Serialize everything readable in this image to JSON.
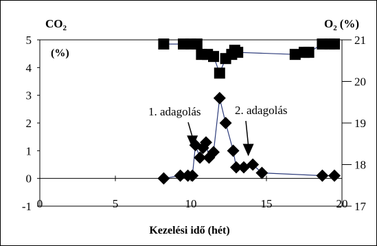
{
  "chart_data": {
    "type": "scatter",
    "title": "",
    "xlabel": "Kezelési idő (hét)",
    "ylabel_left": {
      "main": "CO",
      "sub": "2",
      "unit": "(%)"
    },
    "ylabel_right": {
      "main": "O",
      "sub": "2",
      "unit": "(%)"
    },
    "xlim": [
      0,
      20
    ],
    "ylim_left": [
      -1,
      5
    ],
    "ylim_right": [
      17,
      21
    ],
    "xticks": [
      "0",
      "5",
      "10",
      "15",
      "20"
    ],
    "yticks_left": [
      "-1",
      "0",
      "1",
      "2",
      "3",
      "4",
      "5"
    ],
    "yticks_right": [
      "17",
      "18",
      "19",
      "20",
      "21"
    ],
    "grid": false,
    "legend": "none",
    "series": [
      {
        "marker": "square",
        "axis": "right",
        "color": "#000000",
        "line_color": "#2b3a7a",
        "points": [
          {
            "x": 8.2,
            "y": 20.9
          },
          {
            "x": 9.5,
            "y": 20.9
          },
          {
            "x": 10.0,
            "y": 20.9
          },
          {
            "x": 10.4,
            "y": 20.9
          },
          {
            "x": 10.7,
            "y": 20.65
          },
          {
            "x": 11.1,
            "y": 20.65
          },
          {
            "x": 11.5,
            "y": 20.6
          },
          {
            "x": 11.9,
            "y": 20.2
          },
          {
            "x": 12.3,
            "y": 20.55
          },
          {
            "x": 12.7,
            "y": 20.65
          },
          {
            "x": 12.9,
            "y": 20.75
          },
          {
            "x": 13.1,
            "y": 20.7
          },
          {
            "x": 16.9,
            "y": 20.65
          },
          {
            "x": 17.5,
            "y": 20.7
          },
          {
            "x": 17.8,
            "y": 20.7
          },
          {
            "x": 18.7,
            "y": 20.9
          },
          {
            "x": 19.2,
            "y": 20.9
          },
          {
            "x": 19.5,
            "y": 20.9
          }
        ]
      },
      {
        "marker": "diamond",
        "axis": "left",
        "color": "#000000",
        "line_color": "#2b3a7a",
        "points": [
          {
            "x": 8.2,
            "y": 0.0
          },
          {
            "x": 9.3,
            "y": 0.1
          },
          {
            "x": 9.8,
            "y": 0.1
          },
          {
            "x": 10.1,
            "y": 0.1
          },
          {
            "x": 10.3,
            "y": 1.2
          },
          {
            "x": 10.6,
            "y": 0.75
          },
          {
            "x": 10.8,
            "y": 1.1
          },
          {
            "x": 11.0,
            "y": 1.3
          },
          {
            "x": 11.2,
            "y": 0.75
          },
          {
            "x": 11.5,
            "y": 0.95
          },
          {
            "x": 11.9,
            "y": 2.9
          },
          {
            "x": 12.3,
            "y": 2.0
          },
          {
            "x": 12.8,
            "y": 1.0
          },
          {
            "x": 13.0,
            "y": 0.4
          },
          {
            "x": 13.5,
            "y": 0.4
          },
          {
            "x": 14.1,
            "y": 0.5
          },
          {
            "x": 14.7,
            "y": 0.2
          },
          {
            "x": 18.7,
            "y": 0.1
          },
          {
            "x": 19.5,
            "y": 0.1
          }
        ]
      }
    ],
    "annotations": [
      {
        "text": "1. adagolás",
        "arrow_to": {
          "x": 10.1,
          "y": 1.1
        }
      },
      {
        "text": "2. adagolás",
        "arrow_to": {
          "x": 13.8,
          "y": 0.8
        }
      }
    ]
  }
}
